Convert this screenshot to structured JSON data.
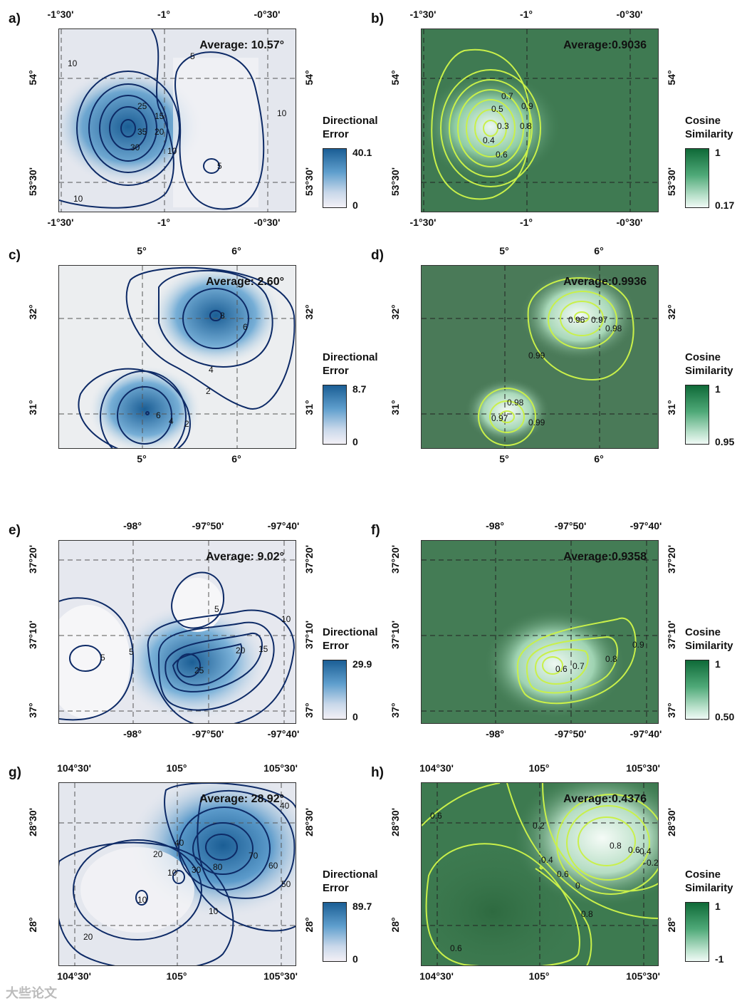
{
  "legends": {
    "error_title": "Directional Error",
    "cos_title": "Cosine Similarity"
  },
  "panels": {
    "a": {
      "label": "a)",
      "avg": "Average: 10.57°",
      "top": [
        "-1°30'",
        "-1°",
        "-0°30'"
      ],
      "bottom": [
        "-1°30'",
        "-1°",
        "-0°30'"
      ],
      "left": [
        "54°",
        "53°30'"
      ],
      "right": [
        "54°",
        "53°30'"
      ],
      "vmax": "40.1",
      "vmin": "0",
      "contours": [
        "10",
        "25",
        "20",
        "15",
        "35",
        "30",
        "10",
        "10",
        "5",
        "5",
        "10"
      ]
    },
    "b": {
      "label": "b)",
      "avg": "Average:0.9036",
      "top": [
        "-1°30'",
        "-1°",
        "-0°30'"
      ],
      "bottom": [
        "-1°30'",
        "-1°",
        "-0°30'"
      ],
      "left": [
        "54°",
        "53°30'"
      ],
      "right": [
        "54°",
        "53°30'"
      ],
      "vmax": "1",
      "vmin": "0.17",
      "contours": [
        "0.7",
        "0.5",
        "0.9",
        "0.3",
        "0.8",
        "0.4",
        "0.6"
      ]
    },
    "c": {
      "label": "c)",
      "avg": "Average: 2.60°",
      "top": [
        "5°",
        "6°"
      ],
      "bottom": [
        "5°",
        "6°"
      ],
      "left": [
        "32°",
        "31°"
      ],
      "right": [
        "32°",
        "31°"
      ],
      "vmax": "8.7",
      "vmin": "0",
      "contours": [
        "8",
        "6",
        "4",
        "2",
        "6",
        "4",
        "2"
      ]
    },
    "d": {
      "label": "d)",
      "avg": "Average:0.9936",
      "top": [
        "5°",
        "6°"
      ],
      "bottom": [
        "5°",
        "6°"
      ],
      "left": [
        "32°",
        "31°"
      ],
      "right": [
        "32°",
        "31°"
      ],
      "vmax": "1",
      "vmin": "0.95",
      "contours": [
        "0.96",
        "0.97",
        "0.98",
        "0.99",
        "0.98",
        "0.97",
        "0.99"
      ]
    },
    "e": {
      "label": "e)",
      "avg": "Average: 9.02°",
      "top": [
        "-98°",
        "-97°50'",
        "-97°40'"
      ],
      "bottom": [
        "-98°",
        "-97°50'",
        "-97°40'"
      ],
      "left": [
        "37°20'",
        "37°10'",
        "37°"
      ],
      "right": [
        "37°20'",
        "37°10'",
        "37°"
      ],
      "vmax": "29.9",
      "vmin": "0",
      "contours": [
        "5",
        "5",
        "5",
        "10",
        "15",
        "20",
        "25"
      ]
    },
    "f": {
      "label": "f)",
      "avg": "Average:0.9358",
      "top": [
        "-98°",
        "-97°50'",
        "-97°40'"
      ],
      "bottom": [
        "-98°",
        "-97°50'",
        "-97°40'"
      ],
      "left": [
        "37°20'",
        "37°10'",
        "37°"
      ],
      "right": [
        "37°20'",
        "37°10'",
        "37°"
      ],
      "vmax": "1",
      "vmin": "0.50",
      "contours": [
        "0.6",
        "0.7",
        "0.8",
        "0.9"
      ]
    },
    "g": {
      "label": "g)",
      "avg": "Average: 28.92°",
      "top": [
        "104°30'",
        "105°",
        "105°30'"
      ],
      "bottom": [
        "104°30'",
        "105°",
        "105°30'"
      ],
      "left": [
        "28°30'",
        "28°"
      ],
      "right": [
        "28°30'",
        "28°"
      ],
      "vmax": "89.7",
      "vmin": "0",
      "contours": [
        "40",
        "20",
        "10",
        "40",
        "10",
        "80",
        "70",
        "60",
        "50",
        "30",
        "10",
        "20"
      ]
    },
    "h": {
      "label": "h)",
      "avg": "Average:0.4376",
      "top": [
        "104°30'",
        "105°",
        "105°30'"
      ],
      "bottom": [
        "104°30'",
        "105°",
        "105°30'"
      ],
      "left": [
        "28°30'",
        "28°"
      ],
      "right": [
        "28°30'",
        "28°"
      ],
      "vmax": "1",
      "vmin": "-1",
      "contours": [
        "0.6",
        "0.2",
        "0.8",
        "0.6",
        "0.4",
        "0.6",
        "0",
        "0.8",
        "-0.2",
        "-0.4",
        "0.6"
      ]
    }
  },
  "watermark": "大些论文"
}
